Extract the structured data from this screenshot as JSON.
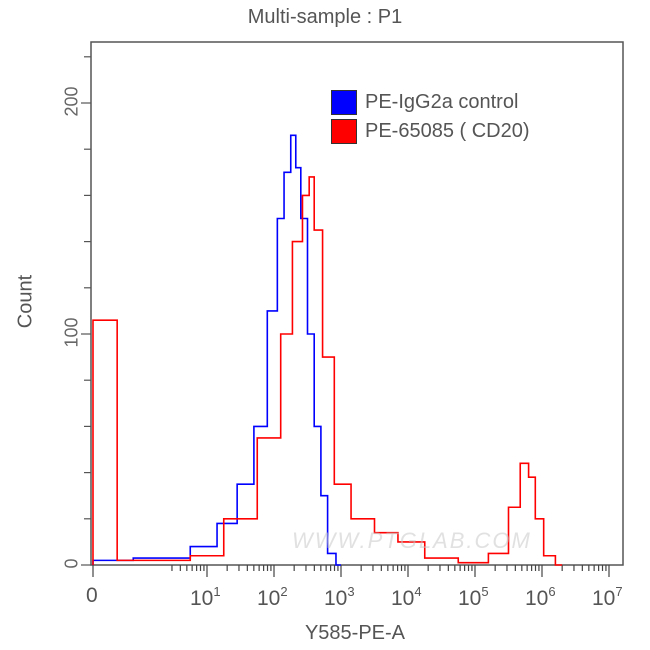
{
  "chart_data": {
    "type": "line",
    "title": "Multi-sample : P1",
    "xlabel": "Y585-PE-A",
    "ylabel": "Count",
    "x_scale": "biexponential/log",
    "x_tick_labels": [
      "0",
      "10^1",
      "10^2",
      "10^3",
      "10^4",
      "10^5",
      "10^6",
      "10^7"
    ],
    "y_tick_labels": [
      "0",
      "100",
      "200"
    ],
    "ylim": [
      0,
      226
    ],
    "xlim_log10": [
      0,
      7
    ],
    "grid": false,
    "legend_position": "upper right (inside)",
    "series": [
      {
        "name": "PE-IgG2a control",
        "color": "#0000ff",
        "x_log10": [
          0.0,
          0.5,
          1.0,
          1.3,
          1.6,
          1.8,
          2.0,
          2.1,
          2.2,
          2.3,
          2.35,
          2.45,
          2.55,
          2.65,
          2.75,
          2.85,
          3.0
        ],
        "values": [
          2,
          3,
          8,
          18,
          35,
          60,
          110,
          150,
          170,
          186,
          172,
          150,
          100,
          60,
          30,
          5,
          0
        ]
      },
      {
        "name": "PE-65085 ( CD20)",
        "color": "#ff0000",
        "x_log10": [
          0.0,
          0.02,
          0.5,
          1.0,
          1.5,
          2.0,
          2.2,
          2.35,
          2.5,
          2.55,
          2.65,
          2.8,
          3.0,
          3.3,
          3.7,
          4.0,
          4.5,
          5.0,
          5.4,
          5.6,
          5.75,
          5.85,
          5.95,
          6.1,
          6.3
        ],
        "values": [
          106,
          2,
          2,
          4,
          20,
          55,
          100,
          140,
          160,
          168,
          145,
          90,
          35,
          20,
          14,
          10,
          3,
          1,
          5,
          25,
          44,
          38,
          20,
          4,
          0
        ]
      }
    ],
    "annotations": [
      "www.ptglab.com watermark"
    ]
  },
  "legend": {
    "items": [
      {
        "label": "PE-IgG2a control",
        "color": "#0000ff"
      },
      {
        "label": "PE-65085 ( CD20)",
        "color": "#ff0000"
      }
    ]
  },
  "axes": {
    "y_ticks": [
      {
        "label": "0",
        "value": 0
      },
      {
        "label": "100",
        "value": 100
      },
      {
        "label": "200",
        "value": 200
      }
    ],
    "x_ticks": [
      {
        "base": "0",
        "exp": ""
      },
      {
        "base": "10",
        "exp": "1"
      },
      {
        "base": "10",
        "exp": "2"
      },
      {
        "base": "10",
        "exp": "3"
      },
      {
        "base": "10",
        "exp": "4"
      },
      {
        "base": "10",
        "exp": "5"
      },
      {
        "base": "10",
        "exp": "6"
      },
      {
        "base": "10",
        "exp": "7"
      }
    ]
  },
  "watermark": "WWW.PTGLAB.COM"
}
